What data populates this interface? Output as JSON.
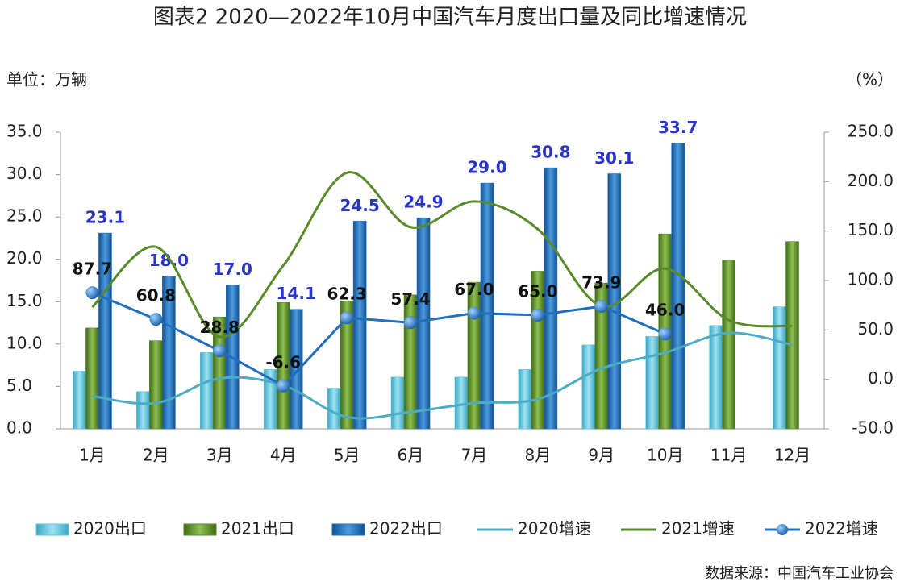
{
  "chart_data": {
    "type": "bar_line",
    "title": "图表2    2020—2022年10月中国汽车月度出口量及同比增速情况",
    "y_label": "单位：万辆",
    "y2_label": "（%）",
    "source": "数据来源：中国汽车工业协会",
    "categories": [
      "1月",
      "2月",
      "3月",
      "4月",
      "5月",
      "6月",
      "7月",
      "8月",
      "9月",
      "10月",
      "11月",
      "12月"
    ],
    "ylim": [
      0,
      35
    ],
    "yticks": [
      {
        "value": 0,
        "label": "0.0"
      },
      {
        "value": 5,
        "label": "5.0"
      },
      {
        "value": 10,
        "label": "10.0"
      },
      {
        "value": 15,
        "label": "15.0"
      },
      {
        "value": 20,
        "label": "20.0"
      },
      {
        "value": 25,
        "label": "25.0"
      },
      {
        "value": 30,
        "label": "30.0"
      },
      {
        "value": 35,
        "label": "35.0"
      }
    ],
    "y2lim": [
      -50,
      250
    ],
    "y2ticks": [
      {
        "value": -50,
        "label": "-50.0"
      },
      {
        "value": 0,
        "label": "0.0"
      },
      {
        "value": 50,
        "label": "50.0"
      },
      {
        "value": 100,
        "label": "100.0"
      },
      {
        "value": 150,
        "label": "150.0"
      },
      {
        "value": 200,
        "label": "200.0"
      },
      {
        "value": 250,
        "label": "250.0"
      }
    ],
    "series": [
      {
        "name": "2020出口",
        "type": "bar",
        "color": "#5bc6e0",
        "values": [
          6.8,
          4.4,
          9.0,
          7.0,
          4.8,
          6.1,
          6.1,
          7.0,
          9.9,
          10.9,
          12.2,
          14.4
        ]
      },
      {
        "name": "2021出口",
        "type": "bar",
        "color": "#5a8a2a",
        "values": [
          11.9,
          10.4,
          13.2,
          14.9,
          15.1,
          15.8,
          17.3,
          18.6,
          17.2,
          23.0,
          19.9,
          22.1
        ]
      },
      {
        "name": "2022出口",
        "type": "bar",
        "color": "#1f6fc0",
        "values": [
          23.1,
          18.0,
          17.0,
          14.1,
          24.5,
          24.9,
          29.0,
          30.8,
          30.1,
          33.7,
          null,
          null
        ],
        "value_labels": [
          "23.1",
          "18.0",
          "17.0",
          "14.1",
          "24.5",
          "24.9",
          "29.0",
          "30.8",
          "30.1",
          "33.7",
          null,
          null
        ]
      },
      {
        "name": "2020增速",
        "type": "line",
        "axis": "y2",
        "color": "#4bacc6",
        "values": [
          -17,
          -24,
          1,
          -6,
          -38,
          -33,
          -24,
          -20,
          11,
          27,
          47,
          35
        ]
      },
      {
        "name": "2021增速",
        "type": "line",
        "axis": "y2",
        "color": "#5a8a2a",
        "values": [
          73,
          134,
          43,
          115,
          209,
          154,
          180,
          152,
          74,
          112,
          60,
          54
        ]
      },
      {
        "name": "2022增速",
        "type": "line_marker",
        "axis": "y2",
        "color": "#1f6fc0",
        "values": [
          87.7,
          60.8,
          28.8,
          -6.6,
          62.3,
          57.4,
          67.0,
          65.0,
          73.9,
          46.0,
          null,
          null
        ],
        "value_labels": [
          "87.7",
          "60.8",
          "28.8",
          "-6.6",
          "62.3",
          "57.4",
          "67.0",
          "65.0",
          "73.9",
          "46.0",
          null,
          null
        ]
      }
    ]
  }
}
